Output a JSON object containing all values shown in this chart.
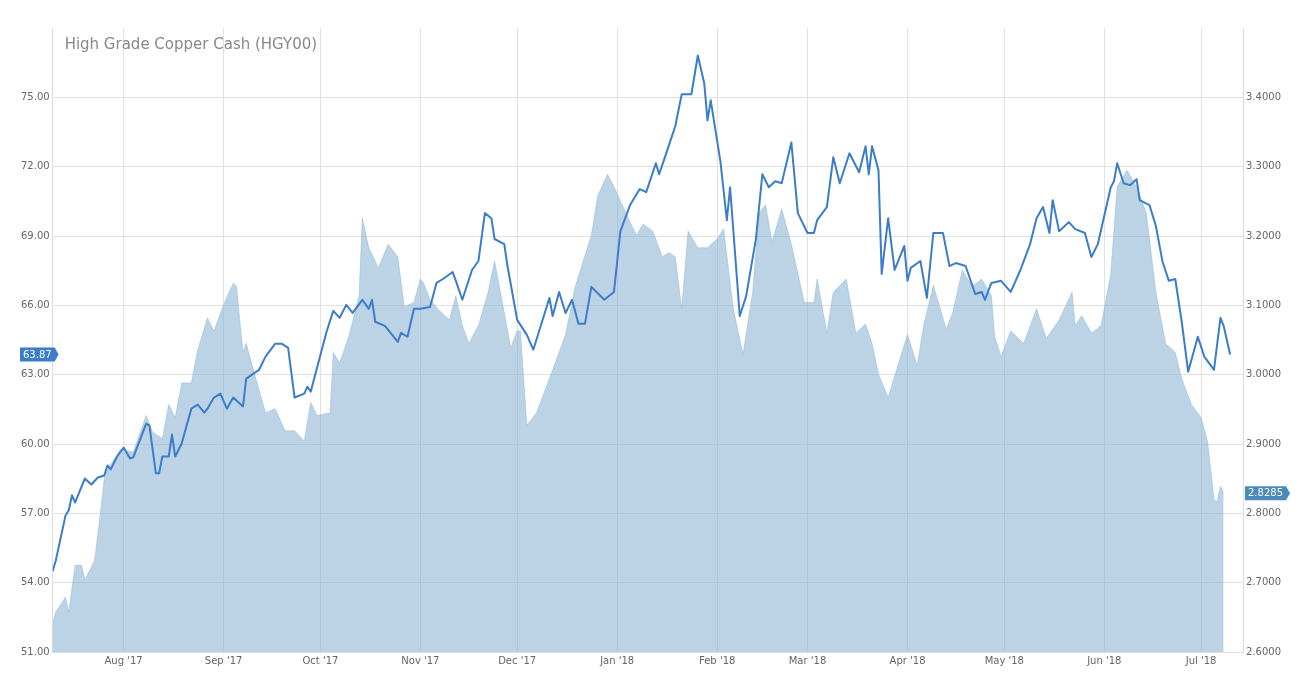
{
  "chart_data": {
    "type": "line",
    "title": "High Grade Copper Cash (HGY00)",
    "xlim": [
      "2017-07-10",
      "2018-07-14"
    ],
    "xticks": [
      {
        "value": "2017-08-01",
        "label": "Aug '17"
      },
      {
        "value": "2017-09-01",
        "label": "Sep '17"
      },
      {
        "value": "2017-10-01",
        "label": "Oct '17"
      },
      {
        "value": "2017-11-01",
        "label": "Nov '17"
      },
      {
        "value": "2017-12-01",
        "label": "Dec '17"
      },
      {
        "value": "2018-01-01",
        "label": "Jan '18"
      },
      {
        "value": "2018-02-01",
        "label": "Feb '18"
      },
      {
        "value": "2018-03-01",
        "label": "Mar '18"
      },
      {
        "value": "2018-04-01",
        "label": "Apr '18"
      },
      {
        "value": "2018-05-01",
        "label": "May '18"
      },
      {
        "value": "2018-06-01",
        "label": "Jun '18"
      },
      {
        "value": "2018-07-01",
        "label": "Jul '18"
      }
    ],
    "ylim": [
      51,
      78
    ],
    "yticks": [
      {
        "value": 51,
        "label": "51.00"
      },
      {
        "value": 54,
        "label": "54.00"
      },
      {
        "value": 57,
        "label": "57.00"
      },
      {
        "value": 60,
        "label": "60.00"
      },
      {
        "value": 63,
        "label": "63.00"
      },
      {
        "value": 66,
        "label": "66.00"
      },
      {
        "value": 69,
        "label": "69.00"
      },
      {
        "value": 72,
        "label": "72.00"
      },
      {
        "value": 75,
        "label": "75.00"
      }
    ],
    "y2lim": [
      2.6,
      3.5
    ],
    "y2ticks": [
      {
        "value": 2.6,
        "label": "2.6000"
      },
      {
        "value": 2.7,
        "label": "2.7000"
      },
      {
        "value": 2.8,
        "label": "2.8000"
      },
      {
        "value": 2.9,
        "label": "2.9000"
      },
      {
        "value": 3.0,
        "label": "3.0000"
      },
      {
        "value": 3.1,
        "label": "3.1000"
      },
      {
        "value": 3.2,
        "label": "3.2000"
      },
      {
        "value": 3.3,
        "label": "3.3000"
      },
      {
        "value": 3.4,
        "label": "3.4000"
      }
    ],
    "grid": true,
    "legend": false,
    "marker": "none",
    "line_style": "solid",
    "annotations": [
      "63.87",
      "2.8285"
    ],
    "series": [
      {
        "color": "#3b7dc8",
        "x": [
          "2017-07-10",
          "2017-07-11",
          "2017-07-14",
          "2017-07-15",
          "2017-07-16",
          "2017-07-17",
          "2017-07-20",
          "2017-07-22",
          "2017-07-24",
          "2017-07-26",
          "2017-07-27",
          "2017-07-28",
          "2017-07-30",
          "2017-08-01",
          "2017-08-03",
          "2017-08-04",
          "2017-08-08",
          "2017-08-09",
          "2017-08-11",
          "2017-08-12",
          "2017-08-13",
          "2017-08-15",
          "2017-08-16",
          "2017-08-17",
          "2017-08-19",
          "2017-08-22",
          "2017-08-24",
          "2017-08-26",
          "2017-08-27",
          "2017-08-29",
          "2017-08-31",
          "2017-09-02",
          "2017-09-04",
          "2017-09-07",
          "2017-09-08",
          "2017-09-12",
          "2017-09-14",
          "2017-09-17",
          "2017-09-19",
          "2017-09-21",
          "2017-09-23",
          "2017-09-26",
          "2017-09-27",
          "2017-09-28",
          "2017-10-03",
          "2017-10-05",
          "2017-10-07",
          "2017-10-09",
          "2017-10-11",
          "2017-10-14",
          "2017-10-16",
          "2017-10-17",
          "2017-10-18",
          "2017-10-21",
          "2017-10-25",
          "2017-10-26",
          "2017-10-28",
          "2017-10-30",
          "2017-11-01",
          "2017-11-04",
          "2017-11-06",
          "2017-11-08",
          "2017-11-11",
          "2017-11-12",
          "2017-11-14",
          "2017-11-17",
          "2017-11-19",
          "2017-11-21",
          "2017-11-23",
          "2017-11-24",
          "2017-11-27",
          "2017-11-28",
          "2017-12-01",
          "2017-12-04",
          "2017-12-06",
          "2017-12-11",
          "2017-12-12",
          "2017-12-14",
          "2017-12-16",
          "2017-12-18",
          "2017-12-20",
          "2017-12-22",
          "2017-12-24",
          "2017-12-28",
          "2017-12-31",
          "2018-01-02",
          "2018-01-05",
          "2018-01-08",
          "2018-01-10",
          "2018-01-13",
          "2018-01-14",
          "2018-01-16",
          "2018-01-19",
          "2018-01-21",
          "2018-01-24",
          "2018-01-26",
          "2018-01-28",
          "2018-01-29",
          "2018-01-30",
          "2018-02-02",
          "2018-02-04",
          "2018-02-05",
          "2018-02-08",
          "2018-02-10",
          "2018-02-13",
          "2018-02-15",
          "2018-02-17",
          "2018-02-19",
          "2018-02-21",
          "2018-02-24",
          "2018-02-26",
          "2018-03-01",
          "2018-03-03",
          "2018-03-04",
          "2018-03-07",
          "2018-03-09",
          "2018-03-11",
          "2018-03-14",
          "2018-03-17",
          "2018-03-19",
          "2018-03-20",
          "2018-03-21",
          "2018-03-23",
          "2018-03-24",
          "2018-03-26",
          "2018-03-28",
          "2018-03-31",
          "2018-04-01",
          "2018-04-02",
          "2018-04-05",
          "2018-04-07",
          "2018-04-09",
          "2018-04-12",
          "2018-04-14",
          "2018-04-16",
          "2018-04-19",
          "2018-04-22",
          "2018-04-24",
          "2018-04-25",
          "2018-04-27",
          "2018-04-30",
          "2018-05-03",
          "2018-05-06",
          "2018-05-09",
          "2018-05-11",
          "2018-05-13",
          "2018-05-15",
          "2018-05-16",
          "2018-05-18",
          "2018-05-21",
          "2018-05-23",
          "2018-05-26",
          "2018-05-28",
          "2018-05-30",
          "2018-06-03",
          "2018-06-04",
          "2018-06-05",
          "2018-06-07",
          "2018-06-09",
          "2018-06-11",
          "2018-06-12",
          "2018-06-15",
          "2018-06-17",
          "2018-06-19",
          "2018-06-21",
          "2018-06-23",
          "2018-06-25",
          "2018-06-27",
          "2018-06-30",
          "2018-07-02",
          "2018-07-05",
          "2018-07-07",
          "2018-07-08",
          "2018-07-10"
        ],
        "values": [
          54.5,
          54.97,
          56.91,
          57.13,
          57.78,
          57.47,
          58.51,
          58.25,
          58.55,
          58.64,
          59.07,
          58.9,
          59.46,
          59.85,
          59.37,
          59.42,
          60.88,
          60.8,
          58.73,
          58.73,
          59.46,
          59.46,
          60.41,
          59.46,
          60.02,
          61.53,
          61.7,
          61.36,
          61.53,
          62.01,
          62.18,
          61.53,
          62.01,
          61.62,
          62.83,
          63.21,
          63.78,
          64.34,
          64.34,
          64.16,
          62.01,
          62.18,
          62.48,
          62.26,
          64.9,
          65.76,
          65.46,
          66.02,
          65.67,
          66.24,
          65.85,
          66.24,
          65.29,
          65.11,
          64.42,
          64.81,
          64.64,
          65.85,
          65.85,
          65.93,
          66.97,
          67.14,
          67.44,
          67.06,
          66.24,
          67.53,
          67.92,
          69.99,
          69.77,
          68.87,
          68.65,
          67.7,
          65.37,
          64.72,
          64.08,
          66.32,
          65.54,
          66.58,
          65.67,
          66.24,
          65.2,
          65.2,
          66.8,
          66.24,
          66.58,
          69.21,
          70.34,
          71.03,
          70.9,
          72.15,
          71.67,
          72.49,
          73.75,
          75.13,
          75.13,
          76.81,
          75.6,
          74.0,
          74.87,
          72.23,
          69.69,
          71.11,
          65.54,
          66.41,
          68.87,
          71.67,
          71.11,
          71.37,
          71.28,
          73.05,
          69.99,
          69.13,
          69.13,
          69.69,
          70.25,
          72.41,
          71.28,
          72.58,
          71.76,
          72.88,
          71.67,
          72.88,
          71.85,
          67.36,
          69.77,
          67.53,
          68.57,
          67.06,
          67.62,
          67.92,
          66.32,
          69.13,
          69.13,
          67.7,
          67.83,
          67.7,
          66.49,
          66.58,
          66.24,
          66.97,
          67.06,
          66.58,
          67.53,
          68.65,
          69.77,
          70.25,
          69.13,
          70.55,
          69.21,
          69.6,
          69.3,
          69.13,
          68.09,
          68.65,
          71.11,
          71.37,
          72.15,
          71.28,
          71.2,
          71.46,
          70.55,
          70.34,
          69.43,
          67.92,
          67.06,
          67.14,
          65.29,
          63.13,
          64.64,
          63.78,
          63.21,
          65.46,
          65.11,
          63.87
        ]
      },
      {
        "type": "area",
        "axis": "y2",
        "color": "#8fb6d6",
        "x": [
          "2017-07-10",
          "2017-07-11",
          "2017-07-14",
          "2017-07-15",
          "2017-07-17",
          "2017-07-19",
          "2017-07-20",
          "2017-07-23",
          "2017-07-25",
          "2017-07-26",
          "2017-07-27",
          "2017-07-31",
          "2017-08-04",
          "2017-08-08",
          "2017-08-10",
          "2017-08-13",
          "2017-08-15",
          "2017-08-17",
          "2017-08-19",
          "2017-08-22",
          "2017-08-24",
          "2017-08-27",
          "2017-08-29",
          "2017-09-01",
          "2017-09-04",
          "2017-09-05",
          "2017-09-07",
          "2017-09-08",
          "2017-09-11",
          "2017-09-14",
          "2017-09-17",
          "2017-09-20",
          "2017-09-23",
          "2017-09-26",
          "2017-09-28",
          "2017-09-30",
          "2017-10-04",
          "2017-10-05",
          "2017-10-07",
          "2017-10-10",
          "2017-10-13",
          "2017-10-14",
          "2017-10-16",
          "2017-10-19",
          "2017-10-22",
          "2017-10-25",
          "2017-10-27",
          "2017-10-30",
          "2017-11-01",
          "2017-11-02",
          "2017-11-04",
          "2017-11-07",
          "2017-11-10",
          "2017-11-12",
          "2017-11-14",
          "2017-11-16",
          "2017-11-19",
          "2017-11-22",
          "2017-11-24",
          "2017-11-26",
          "2017-11-29",
          "2017-12-01",
          "2017-12-02",
          "2017-12-04",
          "2017-12-07",
          "2017-12-11",
          "2017-12-16",
          "2017-12-19",
          "2017-12-24",
          "2017-12-26",
          "2017-12-29",
          "2017-12-31",
          "2018-01-05",
          "2018-01-07",
          "2018-01-09",
          "2018-01-12",
          "2018-01-15",
          "2018-01-17",
          "2018-01-19",
          "2018-01-21",
          "2018-01-23",
          "2018-01-26",
          "2018-01-29",
          "2018-02-01",
          "2018-02-03",
          "2018-02-06",
          "2018-02-09",
          "2018-02-12",
          "2018-02-14",
          "2018-02-16",
          "2018-02-18",
          "2018-02-21",
          "2018-02-24",
          "2018-02-28",
          "2018-03-03",
          "2018-03-04",
          "2018-03-07",
          "2018-03-09",
          "2018-03-13",
          "2018-03-16",
          "2018-03-19",
          "2018-03-21",
          "2018-03-23",
          "2018-03-26",
          "2018-03-29",
          "2018-04-01",
          "2018-04-04",
          "2018-04-06",
          "2018-04-09",
          "2018-04-13",
          "2018-04-15",
          "2018-04-18",
          "2018-04-21",
          "2018-04-24",
          "2018-04-27",
          "2018-04-28",
          "2018-04-30",
          "2018-05-03",
          "2018-05-07",
          "2018-05-11",
          "2018-05-14",
          "2018-05-18",
          "2018-05-22",
          "2018-05-23",
          "2018-05-25",
          "2018-05-28",
          "2018-05-31",
          "2018-06-03",
          "2018-06-05",
          "2018-06-08",
          "2018-06-11",
          "2018-06-14",
          "2018-06-17",
          "2018-06-20",
          "2018-06-23",
          "2018-06-25",
          "2018-06-28",
          "2018-07-01",
          "2018-07-03",
          "2018-07-05",
          "2018-07-06",
          "2018-07-07",
          "2018-07-08"
        ],
        "values": [
          2.642,
          2.658,
          2.679,
          2.658,
          2.725,
          2.725,
          2.704,
          2.732,
          2.807,
          2.85,
          2.863,
          2.892,
          2.888,
          2.941,
          2.917,
          2.908,
          2.957,
          2.938,
          2.988,
          2.988,
          3.036,
          3.082,
          3.063,
          3.101,
          3.132,
          3.127,
          3.032,
          3.045,
          2.994,
          2.945,
          2.951,
          2.919,
          2.919,
          2.904,
          2.96,
          2.941,
          2.945,
          3.032,
          3.017,
          3.058,
          3.114,
          3.226,
          3.183,
          3.154,
          3.188,
          3.17,
          3.098,
          3.104,
          3.138,
          3.132,
          3.108,
          3.092,
          3.079,
          3.114,
          3.071,
          3.045,
          3.071,
          3.119,
          3.164,
          3.114,
          3.039,
          3.063,
          3.063,
          2.927,
          2.945,
          2.994,
          3.058,
          3.127,
          3.201,
          3.258,
          3.289,
          3.271,
          3.22,
          3.201,
          3.217,
          3.207,
          3.17,
          3.176,
          3.17,
          3.095,
          3.207,
          3.183,
          3.183,
          3.196,
          3.21,
          3.095,
          3.029,
          3.119,
          3.233,
          3.245,
          3.191,
          3.239,
          3.188,
          3.104,
          3.104,
          3.138,
          3.06,
          3.119,
          3.138,
          3.06,
          3.073,
          3.045,
          3.001,
          2.967,
          3.013,
          3.058,
          3.013,
          3.071,
          3.129,
          3.066,
          3.089,
          3.151,
          3.127,
          3.138,
          3.114,
          3.055,
          3.026,
          3.063,
          3.045,
          3.095,
          3.052,
          3.079,
          3.119,
          3.071,
          3.085,
          3.06,
          3.071,
          3.145,
          3.271,
          3.295,
          3.271,
          3.233,
          3.119,
          3.045,
          3.032,
          2.994,
          2.957,
          2.938,
          2.904,
          2.82,
          2.816,
          2.839,
          2.829
        ]
      }
    ]
  }
}
